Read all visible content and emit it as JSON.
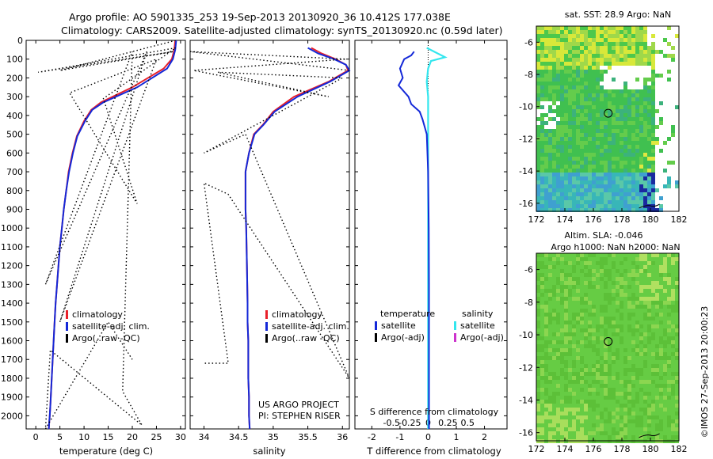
{
  "header": {
    "line1": "Argo profile: AO 5901335_253 19-Sep-2013 20130920_36 10.412S 177.038E",
    "line2": "Climatology: CARS2009. Satellite-adjusted climatology: synTS_20130920.nc (0.59d later)"
  },
  "colors": {
    "climatology": "#e8202a",
    "satellite": "#1428d8",
    "argo": "#000000",
    "sal_satellite": "#33e6ee",
    "sal_argo": "#cc33cc"
  },
  "chart_data": [
    {
      "type": "line",
      "panel": "temperature",
      "xlabel": "temperature (deg C)",
      "ylabel": "",
      "xlim": [
        -2,
        31
      ],
      "ylim": [
        2070,
        0
      ],
      "xticks": [
        0,
        5,
        10,
        15,
        20,
        25,
        30
      ],
      "yticks": [
        0,
        100,
        200,
        300,
        400,
        500,
        600,
        700,
        800,
        900,
        1000,
        1100,
        1200,
        1300,
        1400,
        1500,
        1600,
        1700,
        1800,
        1900,
        2000
      ],
      "legend": [
        "climatology",
        "satellite-adj. clim.",
        "Argo(..raw -QC)"
      ],
      "series": [
        {
          "name": "climatology",
          "x": [
            28.9,
            28.7,
            28.2,
            26.5,
            20,
            13.5,
            11.5,
            10,
            8.5,
            7.6,
            6.8,
            6.3,
            5.8,
            5.4,
            5.0,
            4.7,
            4.4,
            4.1,
            3.9,
            3.7,
            3.5,
            3.3,
            3.1,
            3.0,
            2.9,
            2.8,
            2.75,
            2.7
          ],
          "y": [
            0,
            50,
            100,
            150,
            250,
            330,
            370,
            430,
            510,
            600,
            700,
            800,
            900,
            1000,
            1100,
            1200,
            1300,
            1400,
            1500,
            1600,
            1700,
            1800,
            1900,
            1950,
            2000,
            2030,
            2050,
            2070
          ]
        },
        {
          "name": "satellite-adj. clim.",
          "x": [
            29.1,
            28.9,
            28.4,
            27.2,
            21,
            14,
            11.7,
            10.2,
            8.6,
            7.7,
            6.9,
            6.3,
            5.8,
            5.4,
            5.0,
            4.7,
            4.4,
            4.1,
            3.9,
            3.7,
            3.5,
            3.3,
            3.1,
            3.0,
            2.9,
            2.8,
            2.75,
            2.7
          ],
          "y": [
            0,
            50,
            100,
            150,
            250,
            330,
            370,
            430,
            510,
            600,
            700,
            800,
            900,
            1000,
            1100,
            1200,
            1300,
            1400,
            1500,
            1600,
            1700,
            1800,
            1900,
            1950,
            2000,
            2030,
            2050,
            2070
          ]
        },
        {
          "name": "Argo(..raw -QC)",
          "x": [
            29,
            5,
            28.5,
            0.5,
            29,
            14,
            21,
            7,
            25,
            5,
            23,
            2,
            20,
            18,
            22,
            3,
            2,
            15,
            20
          ],
          "y": [
            0,
            160,
            60,
            170,
            40,
            310,
            870,
            280,
            100,
            1500,
            60,
            1300,
            60,
            1870,
            2050,
            1650,
            2070,
            1500,
            1700
          ]
        }
      ]
    },
    {
      "type": "line",
      "panel": "salinity",
      "xlabel": "salinity",
      "ylabel": "",
      "xlim": [
        33.8,
        36.1
      ],
      "ylim": [
        2070,
        0
      ],
      "xticks": [
        34,
        34.5,
        35,
        35.5,
        36
      ],
      "xticklabels": [
        "34",
        "34.5",
        "35",
        "35.5",
        "36"
      ],
      "legend": [
        "climatology",
        "satellite-adj. clim.",
        "Argo(..raw -QC)"
      ],
      "annotations": [
        "US ARGO PROJECT",
        "PI: STEPHEN RISER"
      ],
      "series": [
        {
          "name": "climatology",
          "x": [
            35.55,
            35.7,
            35.9,
            36.05,
            36.08,
            35.8,
            35.3,
            35.0,
            34.85,
            34.72,
            34.65,
            34.6,
            34.6,
            34.6,
            34.61,
            34.62,
            34.63,
            34.63,
            34.64,
            34.64,
            34.65,
            34.65,
            34.66
          ],
          "y": [
            40,
            70,
            100,
            130,
            160,
            220,
            300,
            380,
            450,
            500,
            600,
            700,
            800,
            900,
            1000,
            1200,
            1400,
            1500,
            1600,
            1800,
            1900,
            2000,
            2070
          ]
        },
        {
          "name": "satellite-adj. clim.",
          "x": [
            35.5,
            35.65,
            35.88,
            36.05,
            36.1,
            35.82,
            35.35,
            35.02,
            34.86,
            34.73,
            34.65,
            34.6,
            34.6,
            34.6,
            34.61,
            34.62,
            34.63,
            34.63,
            34.64,
            34.64,
            34.65,
            34.65,
            34.66
          ],
          "y": [
            40,
            70,
            100,
            130,
            160,
            220,
            300,
            380,
            450,
            500,
            600,
            700,
            800,
            900,
            1000,
            1200,
            1400,
            1500,
            1600,
            1800,
            1900,
            2000,
            2070
          ]
        },
        {
          "name": "Argo(..raw -QC)",
          "x": [
            36.1,
            33.8,
            36.05,
            33.85,
            35.8,
            34.2,
            36.0,
            34.0,
            34.6,
            36.1,
            34.35,
            34.0,
            34.35,
            34.0
          ],
          "y": [
            160,
            60,
            100,
            160,
            300,
            170,
            200,
            600,
            500,
            1800,
            820,
            760,
            1720,
            1720
          ]
        }
      ]
    },
    {
      "type": "line",
      "panel": "difference",
      "xlabel": "T difference from climatology",
      "xlabel_top": "S difference from climatology",
      "xlim": [
        -2.6,
        2.8
      ],
      "ylim": [
        2070,
        0
      ],
      "xticks": [
        -2,
        -1,
        0,
        1,
        2
      ],
      "sticks_labels": [
        "-0.5",
        "-0.25",
        "0",
        "0.25",
        "0.5"
      ],
      "legend_left": {
        "title": "temperature",
        "items": [
          "satellite",
          "Argo(-adj)"
        ]
      },
      "legend_right": {
        "title": "salinity",
        "items": [
          "satellite",
          "Argo(-adj)"
        ]
      },
      "series": [
        {
          "name": "temperature satellite",
          "x": [
            -0.5,
            -0.6,
            -0.85,
            -1.0,
            -0.9,
            -1.05,
            -0.7,
            -0.6,
            -0.3,
            -0.2,
            -0.05,
            0.0,
            0.02,
            0.03,
            0.03,
            0.03,
            0.03
          ],
          "y": [
            60,
            80,
            100,
            150,
            200,
            240,
            300,
            340,
            380,
            420,
            500,
            700,
            1000,
            1300,
            1600,
            1900,
            2070
          ]
        },
        {
          "name": "salinity satellite",
          "x": [
            -0.05,
            0.6,
            0.1,
            0.0,
            -0.05,
            0.0,
            0.0,
            0.0,
            0.0,
            0.0,
            0.0
          ],
          "y": [
            40,
            90,
            110,
            150,
            220,
            300,
            500,
            800,
            1200,
            1600,
            2070
          ]
        }
      ]
    },
    {
      "type": "heatmap",
      "panel": "sst-map",
      "title": "sat. SST: 28.9 Argo: NaN",
      "xlim": [
        172,
        182
      ],
      "ylim": [
        -16.5,
        -5
      ],
      "xticks": [
        172,
        174,
        176,
        178,
        180,
        182
      ],
      "yticks": [
        -6,
        -8,
        -10,
        -12,
        -14,
        -16
      ],
      "marker": {
        "lon": 177.04,
        "lat": -10.41
      }
    },
    {
      "type": "heatmap",
      "panel": "sla-map",
      "title": "Altim. SLA: -0.046",
      "subtitle": "Argo h1000: NaN h2000: NaN",
      "xlim": [
        172,
        182
      ],
      "ylim": [
        -16.5,
        -5
      ],
      "xticks": [
        172,
        174,
        176,
        178,
        180,
        182
      ],
      "yticks": [
        -6,
        -8,
        -10,
        -12,
        -14,
        -16
      ],
      "marker": {
        "lon": 177.04,
        "lat": -10.41
      }
    }
  ],
  "footer": {
    "side_text": "©IMOS 27-Sep-2013 20:00:23"
  }
}
